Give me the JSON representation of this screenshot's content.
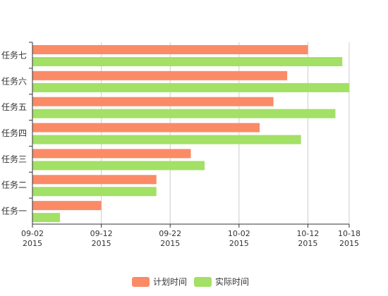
{
  "chart_data": {
    "type": "bar",
    "orientation": "horizontal",
    "categories": [
      "任务一",
      "任务二",
      "任务三",
      "任务四",
      "任务五",
      "任务六",
      "任务七"
    ],
    "series": [
      {
        "name": "计划时间",
        "color": "#fa8b66",
        "values": [
          "2015-09-12",
          "2015-09-20",
          "2015-09-25",
          "2015-10-05",
          "2015-10-07",
          "2015-10-09",
          "2015-10-12"
        ]
      },
      {
        "name": "实际时间",
        "color": "#a3e066",
        "values": [
          "2015-09-06",
          "2015-09-20",
          "2015-09-27",
          "2015-10-11",
          "2015-10-16",
          "2015-10-18",
          "2015-10-17"
        ]
      }
    ],
    "x_axis": {
      "type": "time",
      "min": "2015-09-02",
      "max": "2015-10-18",
      "ticks": [
        {
          "date": "2015-09-02",
          "line1": "09-02",
          "line2": "2015"
        },
        {
          "date": "2015-09-12",
          "line1": "09-12",
          "line2": "2015"
        },
        {
          "date": "2015-09-22",
          "line1": "09-22",
          "line2": "2015"
        },
        {
          "date": "2015-10-02",
          "line1": "10-02",
          "line2": "2015"
        },
        {
          "date": "2015-10-12",
          "line1": "10-12",
          "line2": "2015"
        },
        {
          "date": "2015-10-18",
          "line1": "10-18",
          "line2": "2015"
        }
      ]
    },
    "grid": "vertical",
    "legend": "bottom-center",
    "title": "",
    "xlabel": "",
    "ylabel": ""
  }
}
